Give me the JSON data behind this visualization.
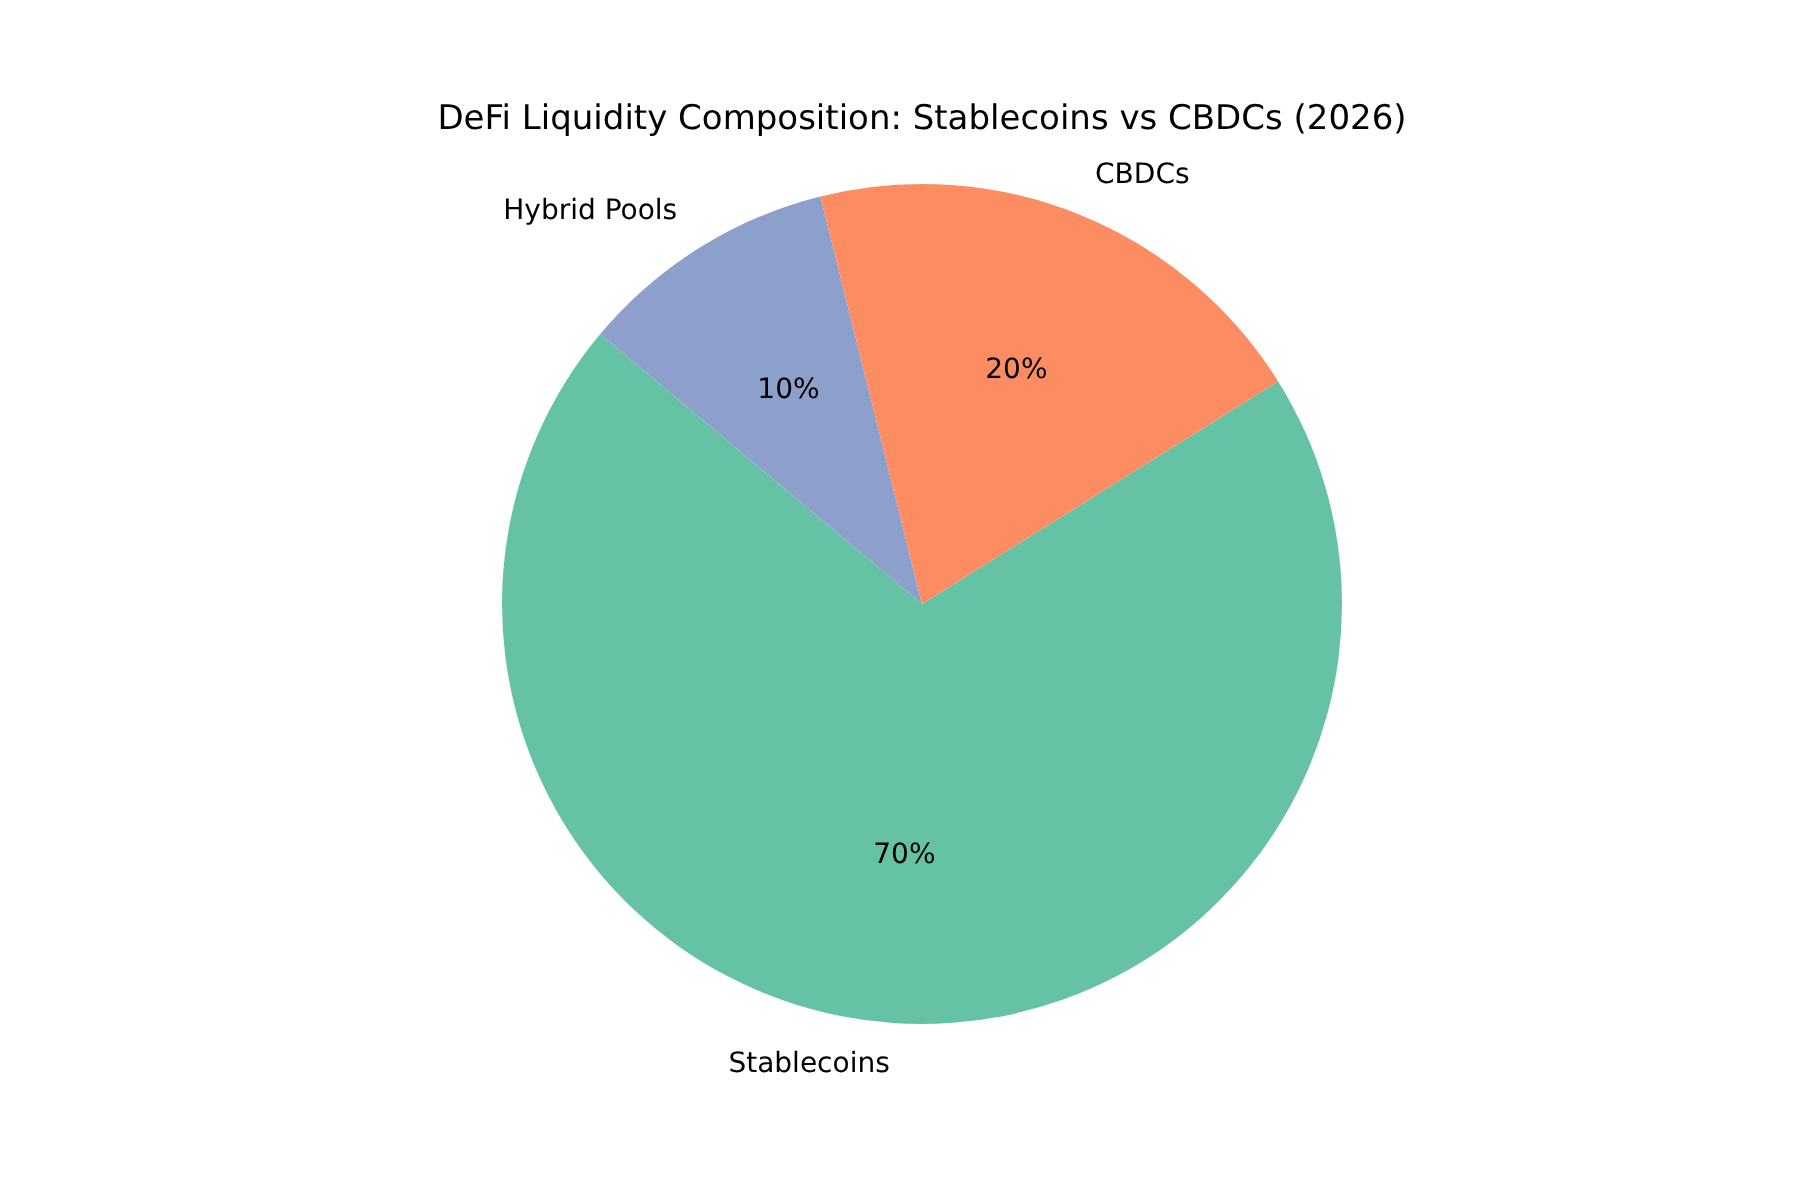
{
  "chart_data": {
    "type": "pie",
    "title": "DeFi Liquidity Composition: Stablecoins vs CBDCs (2026)",
    "categories": [
      "Stablecoins",
      "Hybrid Pools",
      "CBDCs"
    ],
    "values": [
      70,
      10,
      20
    ],
    "colors": [
      "#66c2a5",
      "#8da0cb",
      "#fc8d62"
    ],
    "value_labels": [
      "70%",
      "10%",
      "20%"
    ],
    "legend": false
  }
}
